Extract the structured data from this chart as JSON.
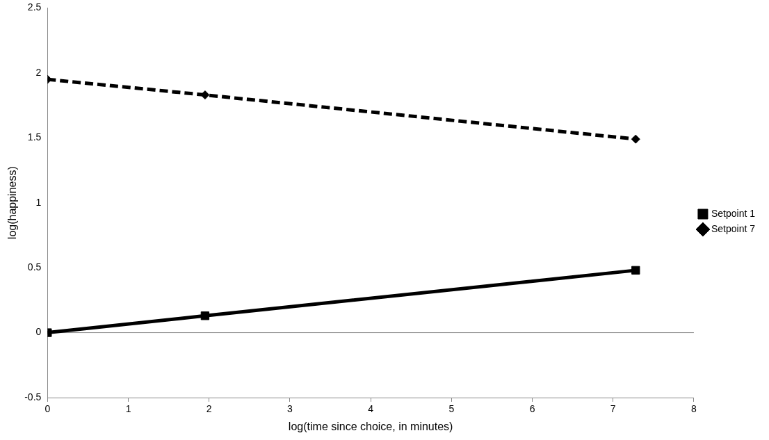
{
  "chart_data": {
    "type": "line",
    "xlabel": "log(time since choice, in minutes)",
    "ylabel": "log(happiness)",
    "x": [
      0,
      1.95,
      7.28
    ],
    "series": [
      {
        "name": "Setpoint 1",
        "color": "#000000",
        "values": [
          0,
          0.13,
          0.48
        ],
        "marker": "square",
        "line_style": "solid"
      },
      {
        "name": "Setpoint 7",
        "color": "#000000",
        "values": [
          1.95,
          1.83,
          1.49
        ],
        "marker": "diamond",
        "line_style": "dashed"
      }
    ],
    "xlim": [
      0,
      8
    ],
    "xticks": [
      0,
      1,
      2,
      3,
      4,
      5,
      6,
      7,
      8
    ],
    "ylim": [
      -0.5,
      2.5
    ],
    "yticks": [
      -0.5,
      0,
      0.5,
      1,
      1.5,
      2,
      2.5
    ],
    "grid": false,
    "legend": "right",
    "ref_lines": [
      {
        "axis": "y",
        "value": 0,
        "color": "#888888",
        "line_style": "solid"
      }
    ]
  }
}
